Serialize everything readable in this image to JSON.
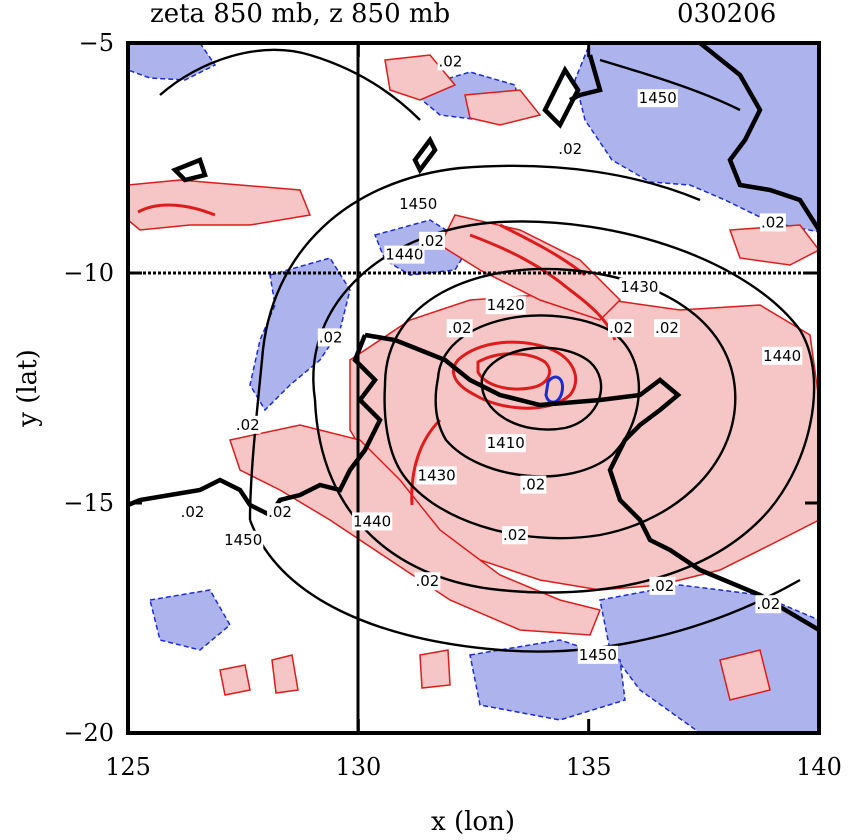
{
  "chart_data": {
    "type": "contour",
    "title_left": "zeta 850 mb, z 850 mb",
    "title_right": "030206",
    "xlabel": "x (lon)",
    "ylabel": "y (lat)",
    "xlim": [
      125,
      140
    ],
    "ylim": [
      -20,
      -5
    ],
    "xticks": [
      125,
      130,
      135,
      140
    ],
    "yticks": [
      -5,
      -10,
      -15,
      -20
    ],
    "xtick_labels": [
      "125",
      "130",
      "135",
      "140"
    ],
    "ytick_labels": [
      "−5",
      "−10",
      "−15",
      "−20"
    ],
    "reference_lines": {
      "x": 130,
      "y": -10
    },
    "fields": {
      "height": {
        "name": "z 850 mb",
        "levels": [
          1410,
          1420,
          1430,
          1440,
          1450
        ],
        "color": "#000000",
        "labels": [
          {
            "text": "1450",
            "x": 136.5,
            "y": -6.2
          },
          {
            "text": "1450",
            "x": 131.3,
            "y": -8.5
          },
          {
            "text": "1440",
            "x": 131.0,
            "y": -9.6
          },
          {
            "text": "1430",
            "x": 136.1,
            "y": -10.3
          },
          {
            "text": "1420",
            "x": 133.2,
            "y": -10.7
          },
          {
            "text": "1440",
            "x": 139.2,
            "y": -11.8
          },
          {
            "text": "1410",
            "x": 133.2,
            "y": -13.7
          },
          {
            "text": "1430",
            "x": 131.7,
            "y": -14.4
          },
          {
            "text": "1440",
            "x": 130.3,
            "y": -15.4
          },
          {
            "text": "1450",
            "x": 127.5,
            "y": -15.8
          },
          {
            "text": "1450",
            "x": 135.2,
            "y": -18.3
          }
        ]
      },
      "vorticity": {
        "name": "zeta 850 mb",
        "positive_color": "#dd1c1c",
        "positive_fill": "#f6c6c6",
        "negative_color": "#1c2cd0",
        "negative_fill": "#adb3ec",
        "labels": [
          {
            "text": ".02",
            "x": 132.0,
            "y": -5.4
          },
          {
            "text": ".02",
            "x": 134.6,
            "y": -7.3
          },
          {
            "text": ".02",
            "x": 139.0,
            "y": -8.9
          },
          {
            "text": ".02",
            "x": 131.6,
            "y": -9.3
          },
          {
            "text": ".02",
            "x": 129.4,
            "y": -11.4
          },
          {
            "text": ".02",
            "x": 132.2,
            "y": -11.2
          },
          {
            "text": ".02",
            "x": 135.7,
            "y": -11.2
          },
          {
            "text": ".02",
            "x": 136.7,
            "y": -11.2
          },
          {
            "text": ".02",
            "x": 127.6,
            "y": -13.3
          },
          {
            "text": ".02",
            "x": 126.4,
            "y": -15.2
          },
          {
            "text": ".02",
            "x": 128.3,
            "y": -15.2
          },
          {
            "text": ".02",
            "x": 133.8,
            "y": -14.6
          },
          {
            "text": ".02",
            "x": 133.4,
            "y": -15.7
          },
          {
            "text": ".02",
            "x": 131.5,
            "y": -16.7
          },
          {
            "text": ".02",
            "x": 136.6,
            "y": -16.8
          },
          {
            "text": ".02",
            "x": 138.9,
            "y": -17.2
          }
        ]
      }
    }
  }
}
